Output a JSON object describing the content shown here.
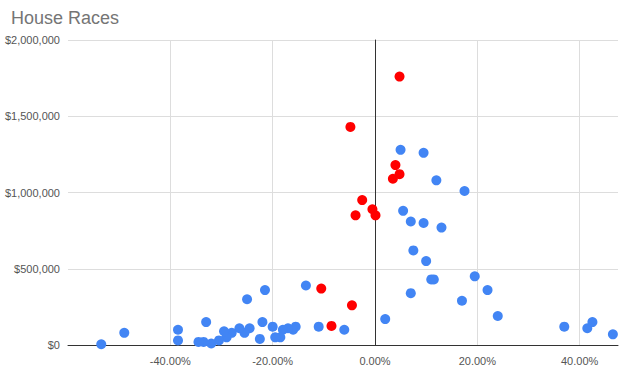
{
  "chart_data": {
    "type": "scatter",
    "title": "House Races",
    "xlim": [
      -60,
      47.5
    ],
    "xticks": [
      {
        "value": -40,
        "label": "-40.00%"
      },
      {
        "value": -20,
        "label": "-20.00%"
      },
      {
        "value": 0,
        "label": "0.00%"
      },
      {
        "value": 20,
        "label": "20.00%"
      },
      {
        "value": 40,
        "label": "40.00%"
      }
    ],
    "ylim": [
      0,
      2000000
    ],
    "yticks": [
      {
        "value": 0,
        "label": "$0"
      },
      {
        "value": 500000,
        "label": "$500,000"
      },
      {
        "value": 1000000,
        "label": "$1,000,000"
      },
      {
        "value": 1500000,
        "label": "$1,500,000"
      },
      {
        "value": 2000000,
        "label": "$2,000,000"
      }
    ],
    "grid": true,
    "marker": "circle",
    "series": [
      {
        "color": "#4285f4",
        "x": [
          5.0,
          9.5,
          12,
          17.5,
          5.5,
          7,
          9.5,
          13,
          7.5,
          10,
          11,
          11.5,
          19.5,
          22,
          17,
          7,
          24,
          2,
          -13.5,
          -21.5,
          -25,
          -11,
          -6,
          -15.5,
          -16,
          -17,
          -18,
          -18.5,
          -20,
          -19.5,
          -22,
          -22.5,
          -24.5,
          -25.5,
          -26.5,
          -28,
          -29,
          -29.5,
          -30.5,
          -33,
          -32,
          -33.5,
          -34.5,
          -38.5,
          -38.5,
          -49,
          -53.5,
          37,
          41.5,
          42.5,
          46.5
        ],
        "values": [
          1280000,
          1260000,
          1080000,
          1010000,
          880000,
          810000,
          800000,
          770000,
          620000,
          550000,
          430000,
          430000,
          450000,
          360000,
          290000,
          340000,
          190000,
          170000,
          390000,
          360000,
          300000,
          120000,
          100000,
          120000,
          100000,
          110000,
          100000,
          50000,
          120000,
          50000,
          150000,
          40000,
          110000,
          80000,
          110000,
          80000,
          50000,
          90000,
          30000,
          150000,
          10000,
          20000,
          20000,
          100000,
          30000,
          80000,
          5000,
          120000,
          110000,
          150000,
          70000
        ]
      },
      {
        "color": "#ff0000",
        "x": [
          4.8,
          -4.8,
          4.0,
          4.8,
          3.5,
          -2.5,
          -0.5,
          0.1,
          -3.8,
          -10.5,
          -4.5,
          -8.5
        ],
        "values": [
          1760000,
          1430000,
          1180000,
          1120000,
          1090000,
          950000,
          890000,
          850000,
          850000,
          370000,
          260000,
          125000
        ]
      }
    ]
  }
}
